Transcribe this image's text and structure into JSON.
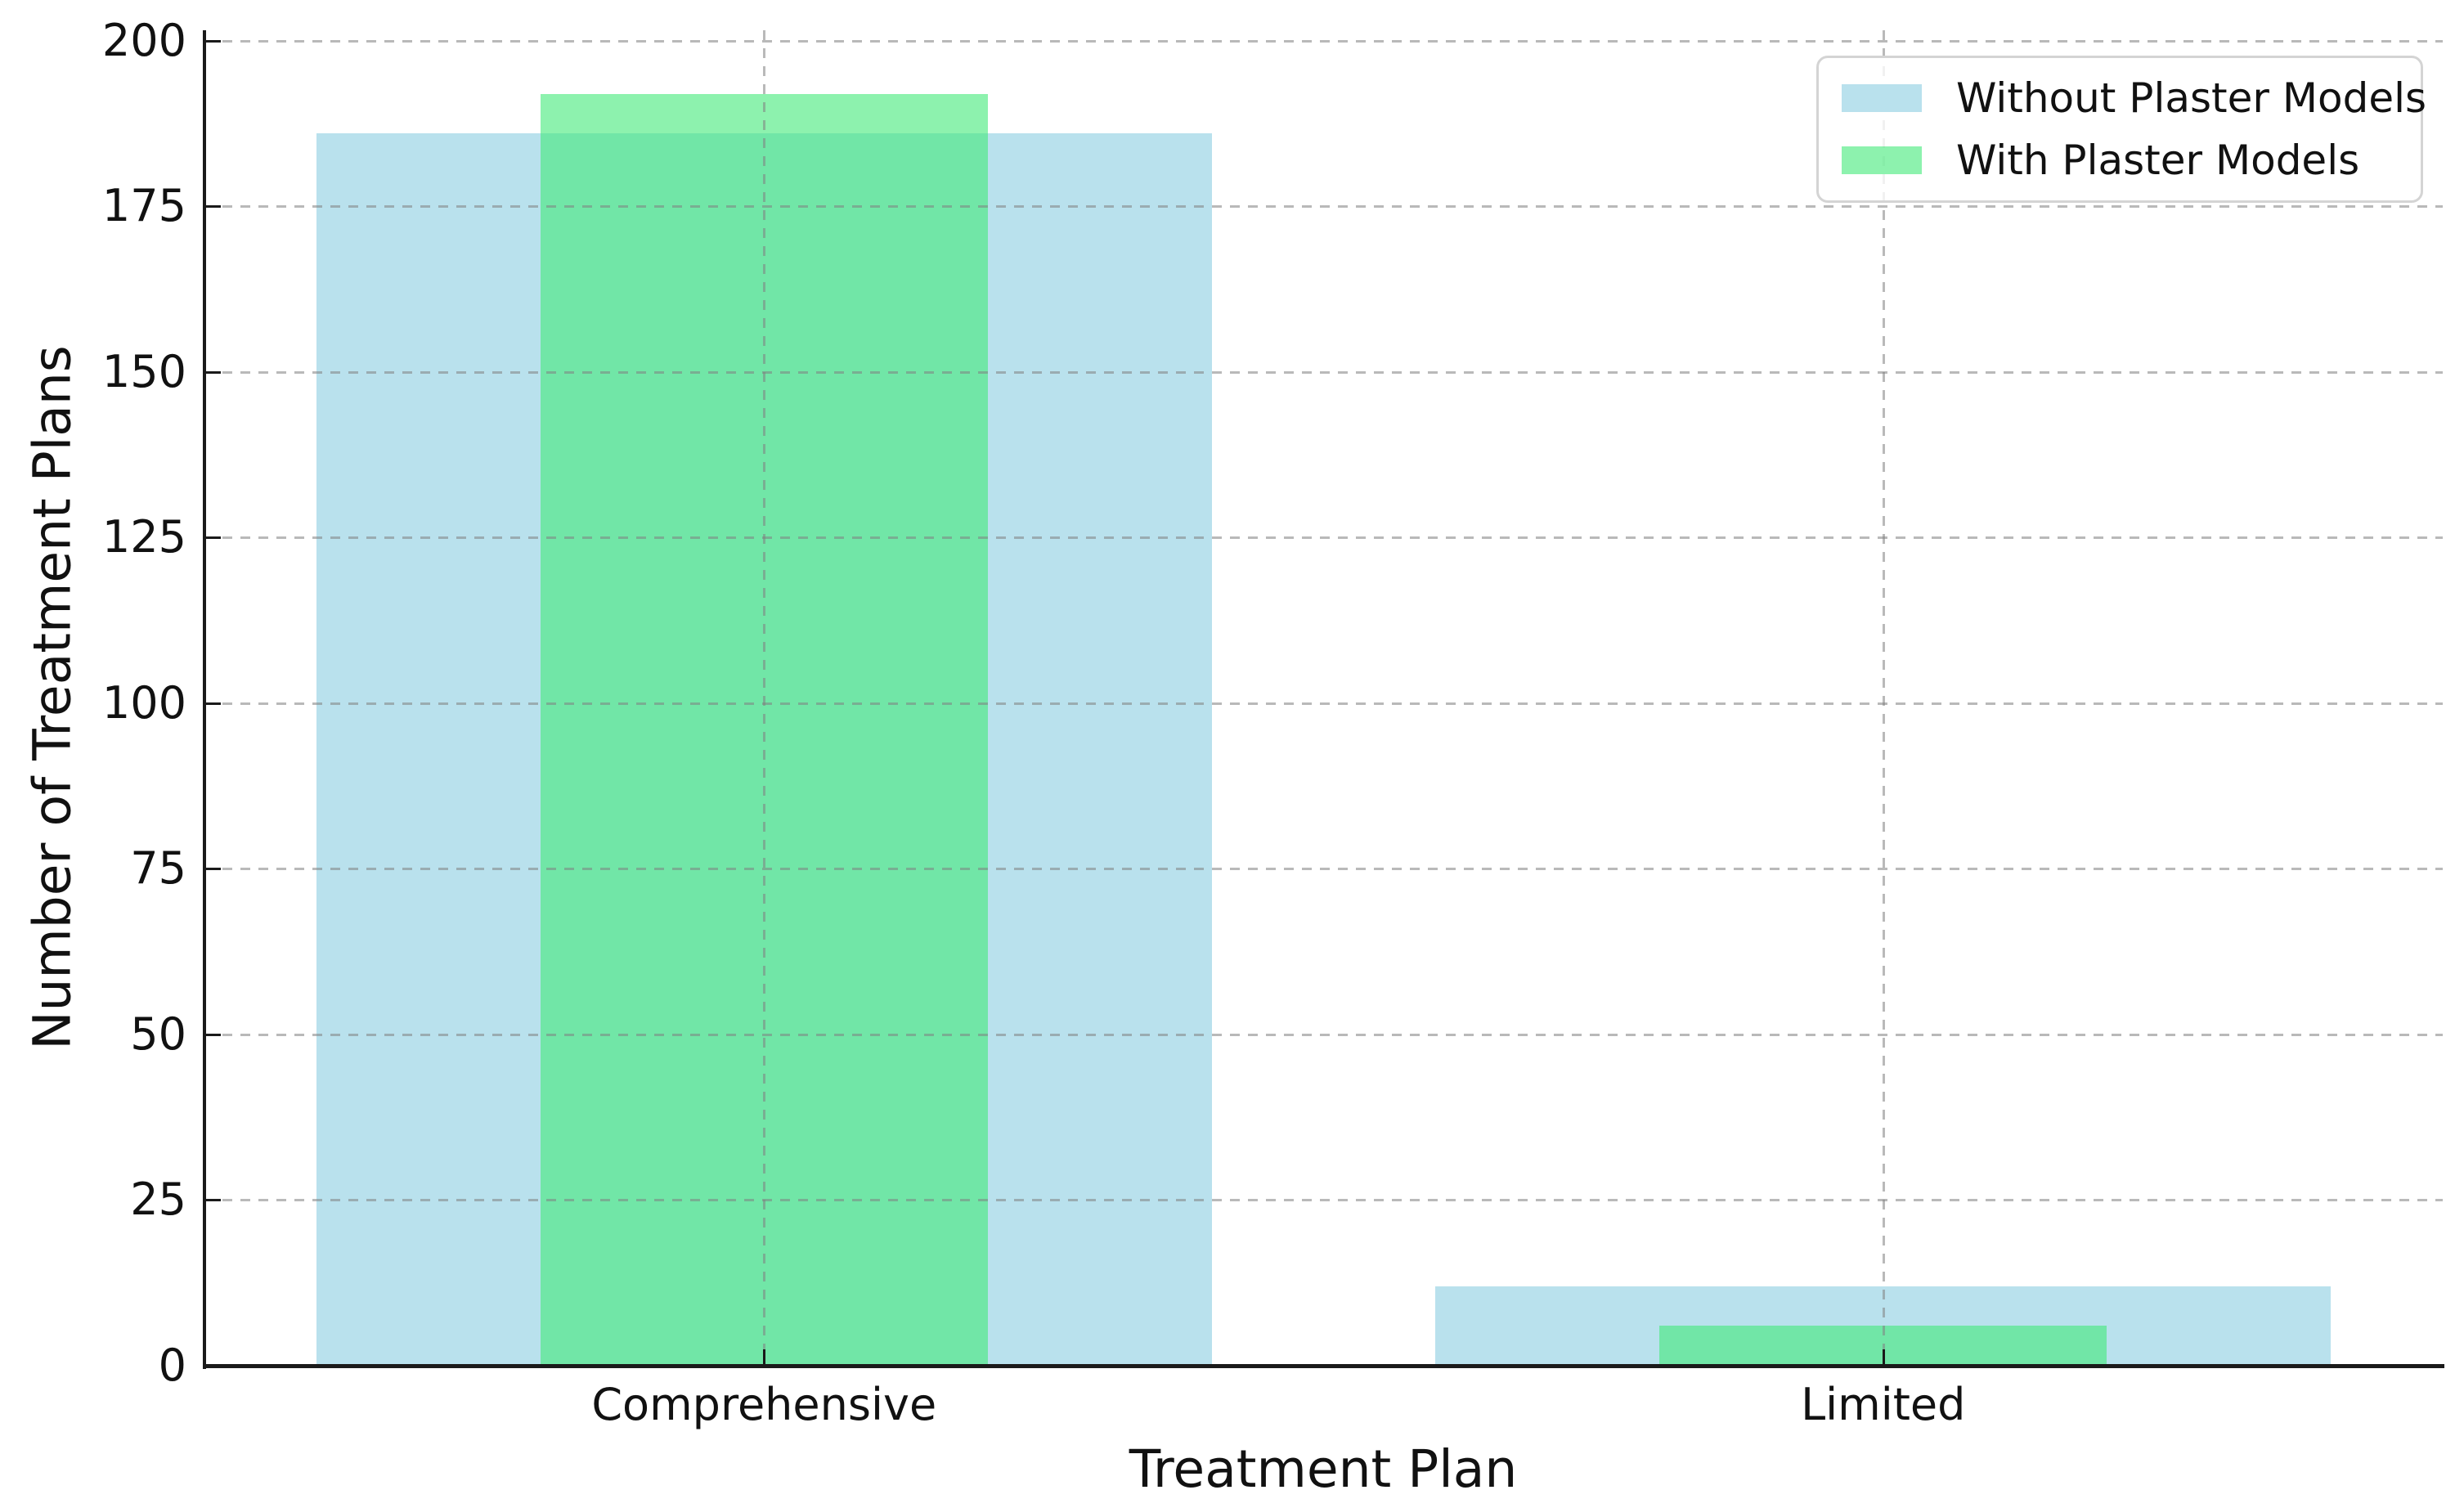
{
  "chart_data": {
    "type": "bar",
    "title": "",
    "xlabel": "Treatment Plan",
    "ylabel": "Number of Treatment Plans",
    "categories": [
      "Comprehensive",
      "Limited"
    ],
    "series": [
      {
        "name": "Without Plaster Models",
        "values": [
          186,
          12
        ],
        "color": "#b9e1ed",
        "alpha": 1.0,
        "bar_width": 0.8
      },
      {
        "name": "With Plaster Models",
        "values": [
          192,
          6
        ],
        "color": "rgba(65,233,120,0.6)",
        "alpha": 0.6,
        "bar_width": 0.4
      }
    ],
    "yticks": [
      0,
      25,
      50,
      75,
      100,
      125,
      150,
      175,
      200
    ],
    "ylim": [
      0,
      201.6
    ],
    "xlim": [
      -0.5,
      1.5
    ],
    "grid": true,
    "grid_style": "dashed",
    "legend_position": "upper right",
    "colors": {
      "text": "#111111",
      "spine": "#1a1a1a",
      "grid": "#b0b0b0",
      "legend_border": "#d4d4d4"
    }
  }
}
